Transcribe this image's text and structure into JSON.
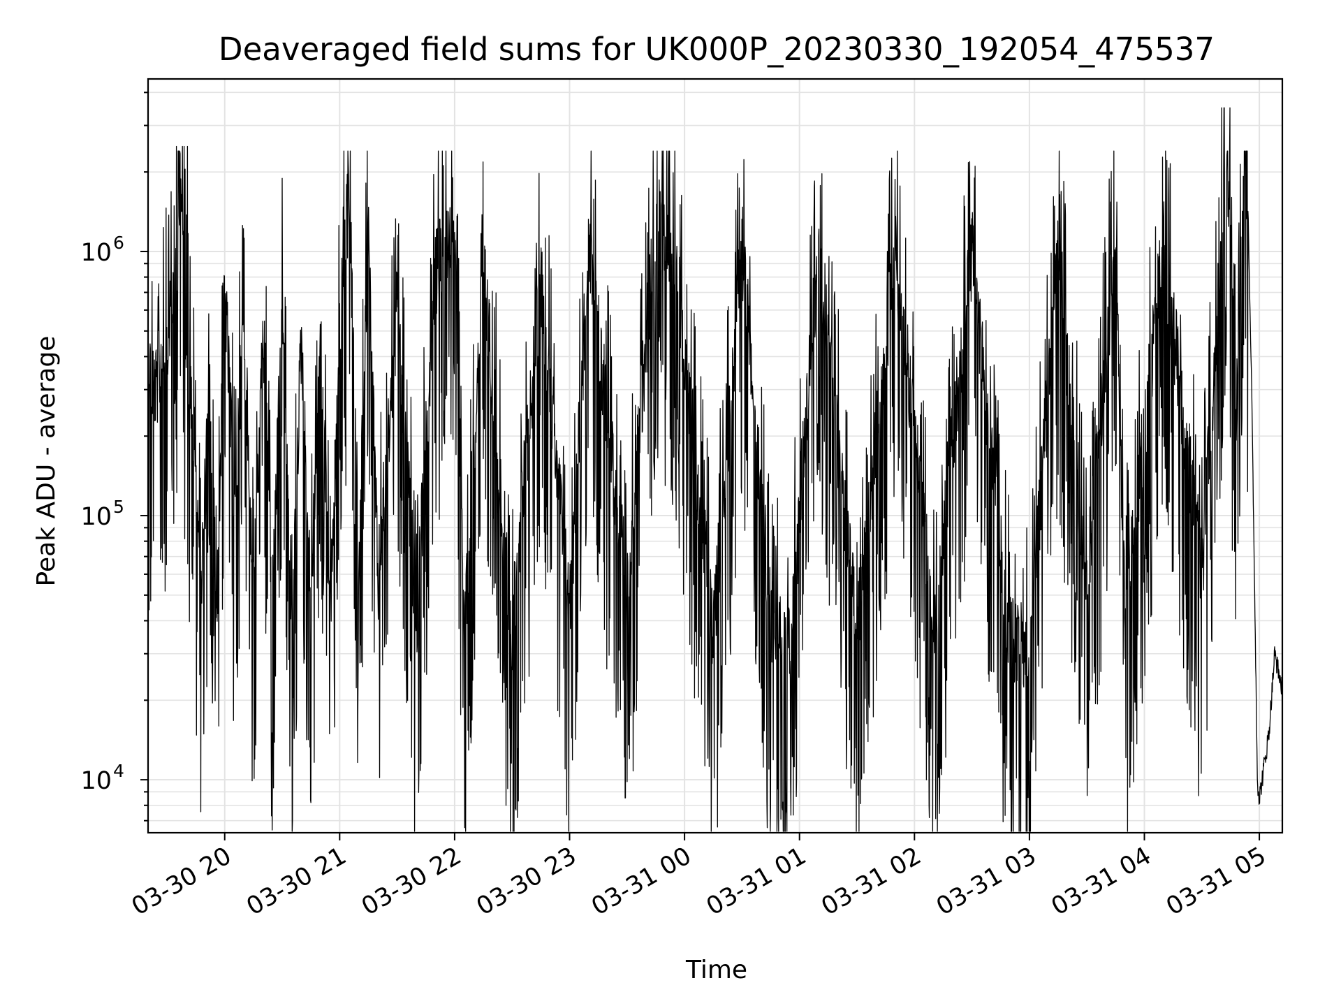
{
  "chart_data": {
    "type": "line",
    "title": "Deaveraged field sums for UK000P_20230330_192054_475537",
    "xlabel": "Time",
    "ylabel": "Peak ADU - average",
    "y_scale": "log",
    "ylim": [
      6300,
      4500000
    ],
    "xlim": [
      "03-30 19:20",
      "03-31 05:12"
    ],
    "grid": true,
    "line_color": "#000000",
    "x_ticks": [
      {
        "t": "03-30 20:00",
        "label": "03-30 20"
      },
      {
        "t": "03-30 21:00",
        "label": "03-30 21"
      },
      {
        "t": "03-30 22:00",
        "label": "03-30 22"
      },
      {
        "t": "03-30 23:00",
        "label": "03-30 23"
      },
      {
        "t": "03-31 00:00",
        "label": "03-31 00"
      },
      {
        "t": "03-31 01:00",
        "label": "03-31 01"
      },
      {
        "t": "03-31 02:00",
        "label": "03-31 02"
      },
      {
        "t": "03-31 03:00",
        "label": "03-31 03"
      },
      {
        "t": "03-31 04:00",
        "label": "03-31 04"
      },
      {
        "t": "03-31 05:00",
        "label": "03-31 05"
      }
    ],
    "y_ticks": [
      {
        "value": 10000,
        "base": "10",
        "exp": "4"
      },
      {
        "value": 100000,
        "base": "10",
        "exp": "5"
      },
      {
        "value": 1000000,
        "base": "10",
        "exp": "6"
      }
    ],
    "series": [
      {
        "points": [
          [
            "03-30 19:20",
            550000
          ],
          [
            "03-30 19:24",
            450000
          ],
          [
            "03-30 19:28",
            620000
          ],
          [
            "03-30 19:32",
            900000
          ],
          [
            "03-30 19:35",
            1500000
          ],
          [
            "03-30 19:37",
            2600000
          ],
          [
            "03-30 19:40",
            700000
          ],
          [
            "03-30 19:44",
            300000
          ],
          [
            "03-30 19:48",
            90000
          ],
          [
            "03-30 19:52",
            450000
          ],
          [
            "03-30 19:56",
            65000
          ],
          [
            "03-30 20:00",
            1200000
          ],
          [
            "03-30 20:05",
            150000
          ],
          [
            "03-30 20:10",
            900000
          ],
          [
            "03-30 20:15",
            65000
          ],
          [
            "03-30 20:20",
            800000
          ],
          [
            "03-30 20:25",
            70000
          ],
          [
            "03-30 20:30",
            900000
          ],
          [
            "03-30 20:35",
            60000
          ],
          [
            "03-30 20:40",
            700000
          ],
          [
            "03-30 20:45",
            65000
          ],
          [
            "03-30 20:50",
            800000
          ],
          [
            "03-30 20:55",
            60000
          ],
          [
            "03-30 21:00",
            700000
          ],
          [
            "03-30 21:05",
            2600000
          ],
          [
            "03-30 21:10",
            100000
          ],
          [
            "03-30 21:15",
            1700000
          ],
          [
            "03-30 21:20",
            80000
          ],
          [
            "03-30 21:30",
            900000
          ],
          [
            "03-30 21:40",
            60000
          ],
          [
            "03-30 21:50",
            1200000
          ],
          [
            "03-30 22:00",
            2100000
          ],
          [
            "03-30 22:05",
            55000
          ],
          [
            "03-30 22:15",
            1300000
          ],
          [
            "03-30 22:30",
            55000
          ],
          [
            "03-30 22:45",
            1200000
          ],
          [
            "03-30 23:00",
            65000
          ],
          [
            "03-30 23:10",
            1500000
          ],
          [
            "03-30 23:30",
            75000
          ],
          [
            "03-30 23:45",
            2100000
          ],
          [
            "03-30 23:55",
            1400000
          ],
          [
            "03-31 00:15",
            55000
          ],
          [
            "03-31 00:30",
            1600000
          ],
          [
            "03-31 00:45",
            60000
          ],
          [
            "03-31 00:55",
            48000
          ],
          [
            "03-31 01:10",
            1600000
          ],
          [
            "03-31 01:30",
            52000
          ],
          [
            "03-31 01:50",
            1500000
          ],
          [
            "03-31 02:10",
            60000
          ],
          [
            "03-31 02:30",
            1500000
          ],
          [
            "03-31 02:50",
            50000
          ],
          [
            "03-31 03:00",
            47000
          ],
          [
            "03-31 03:15",
            1500000
          ],
          [
            "03-31 03:30",
            80000
          ],
          [
            "03-31 03:45",
            1700000
          ],
          [
            "03-31 03:50",
            60000
          ],
          [
            "03-31 04:10",
            1600000
          ],
          [
            "03-31 04:30",
            90000
          ],
          [
            "03-31 04:43",
            3500000
          ],
          [
            "03-31 04:48",
            400000
          ],
          [
            "03-31 04:53",
            3600000
          ],
          [
            "03-31 04:56",
            300000
          ],
          [
            "03-31 04:59",
            10000
          ],
          [
            "03-31 05:00",
            8500
          ],
          [
            "03-31 05:05",
            15000
          ],
          [
            "03-31 05:08",
            30000
          ],
          [
            "03-31 05:12",
            22000
          ]
        ]
      }
    ]
  }
}
